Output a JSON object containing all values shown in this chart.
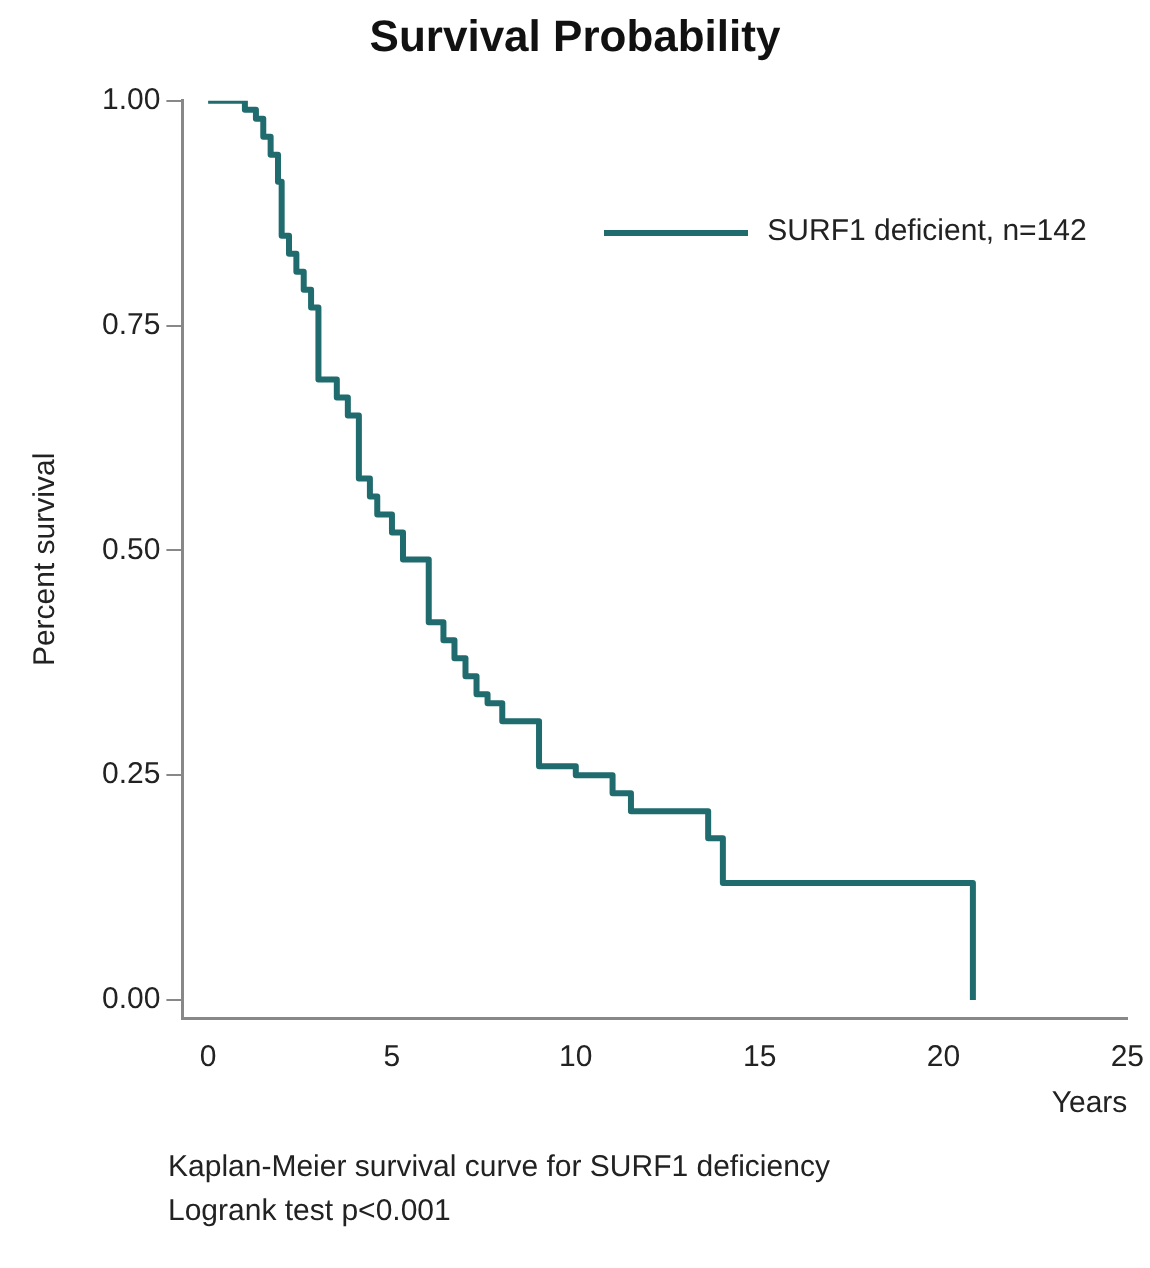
{
  "chart_data": {
    "type": "step",
    "title": "Survival Probability",
    "xlabel": "Years",
    "ylabel": "Percent survival",
    "xlim": [
      -0.7,
      25
    ],
    "xticks": [
      0,
      5,
      10,
      15,
      20,
      25
    ],
    "ylim": [
      -0.02,
      1.0
    ],
    "yticks": [
      {
        "value": 0,
        "label": "0.00"
      },
      {
        "value": 0.25,
        "label": "0.25"
      },
      {
        "value": 0.5,
        "label": "0.50"
      },
      {
        "value": 0.75,
        "label": "0.75"
      },
      {
        "value": 1,
        "label": "1.00"
      }
    ],
    "grid": false,
    "legend": "top right",
    "marker": "none",
    "line_style": "solid",
    "series": [
      {
        "name": "SURF1 deficient, n=142",
        "color": "#1f6b6e",
        "x": [
          0,
          1.0,
          1.3,
          1.5,
          1.7,
          1.9,
          2.0,
          2.2,
          2.4,
          2.6,
          2.8,
          3.0,
          3.5,
          3.8,
          4.1,
          4.4,
          4.6,
          5.0,
          5.3,
          6.0,
          6.4,
          6.7,
          7.0,
          7.3,
          7.6,
          8.0,
          9.0,
          10.0,
          11.0,
          11.5,
          13.6,
          14.0,
          20.8
        ],
        "values": [
          1.0,
          0.99,
          0.98,
          0.96,
          0.94,
          0.91,
          0.85,
          0.83,
          0.81,
          0.79,
          0.77,
          0.69,
          0.67,
          0.65,
          0.58,
          0.56,
          0.54,
          0.52,
          0.49,
          0.42,
          0.4,
          0.38,
          0.36,
          0.34,
          0.33,
          0.31,
          0.26,
          0.25,
          0.23,
          0.21,
          0.18,
          0.13,
          0.0
        ]
      }
    ],
    "annotations": [
      "Kaplan-Meier survival curve for SURF1 deficiency",
      "Logrank test p<0.001"
    ]
  }
}
